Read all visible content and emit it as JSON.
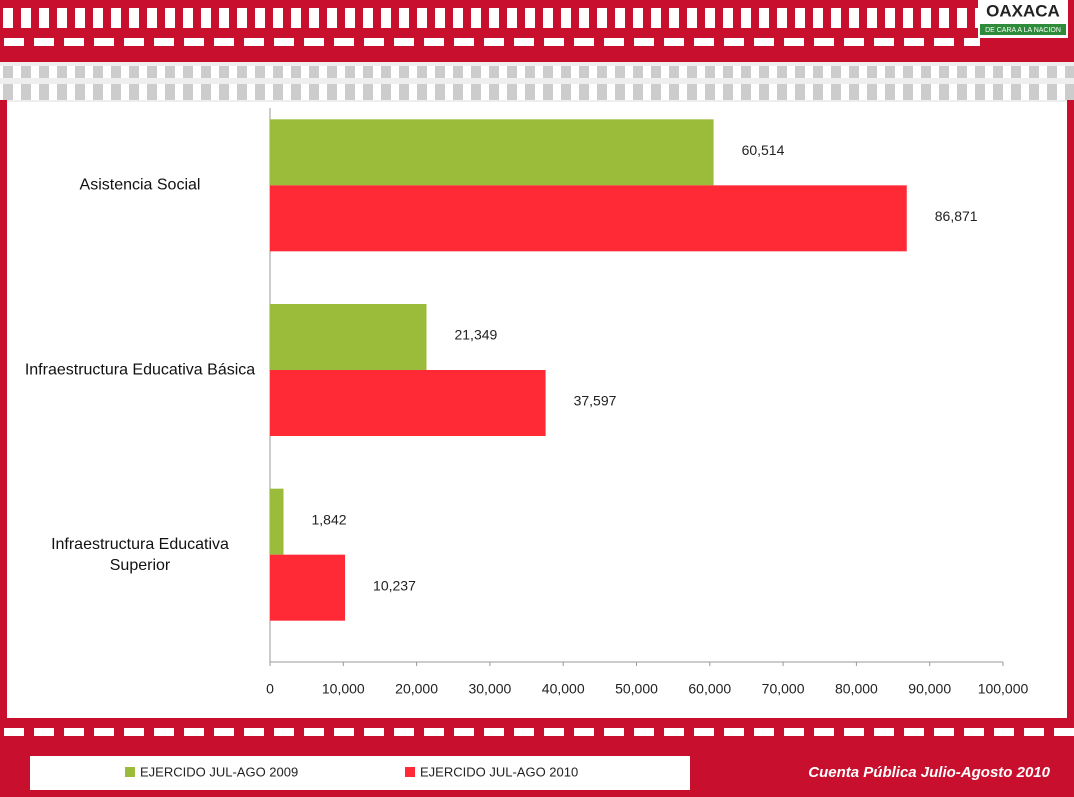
{
  "header": {
    "logo": "OAXACA",
    "logo_subtitle": "DE CARA A LA NACION"
  },
  "chart_data": {
    "type": "hbar",
    "categories": [
      "Asistencia Social",
      "Infraestructura Educativa Básica",
      "Infraestructura Educativa Superior"
    ],
    "series": [
      {
        "name": "EJERCIDO JUL-AGO 2009",
        "color": "#9bbb3b",
        "values": [
          60514,
          21349,
          1842
        ],
        "value_labels": [
          "60,514",
          "21,349",
          "1,842"
        ]
      },
      {
        "name": "EJERCIDO JUL-AGO 2010",
        "color": "#ff2a35",
        "values": [
          86871,
          37597,
          10237
        ],
        "value_labels": [
          "86,871",
          "37,597",
          "10,237"
        ]
      }
    ],
    "xlim": [
      0,
      100000
    ],
    "xticks": [
      0,
      {
        "value": 10000,
        "label": "10,000"
      },
      {
        "value": 20000,
        "label": "20,000"
      },
      {
        "value": 30000,
        "label": "30,000"
      },
      {
        "value": 40000,
        "label": "40,000"
      },
      {
        "value": 50000,
        "label": "50,000"
      },
      {
        "value": 60000,
        "label": "60,000"
      },
      {
        "value": 70000,
        "label": "70,000"
      },
      {
        "value": 80000,
        "label": "80,000"
      },
      {
        "value": 90000,
        "label": "90,000"
      },
      {
        "value": 100000,
        "label": "100,000"
      }
    ],
    "legend": "bottom"
  },
  "footer": {
    "text": "Cuenta Pública  Julio-Agosto 2010"
  }
}
